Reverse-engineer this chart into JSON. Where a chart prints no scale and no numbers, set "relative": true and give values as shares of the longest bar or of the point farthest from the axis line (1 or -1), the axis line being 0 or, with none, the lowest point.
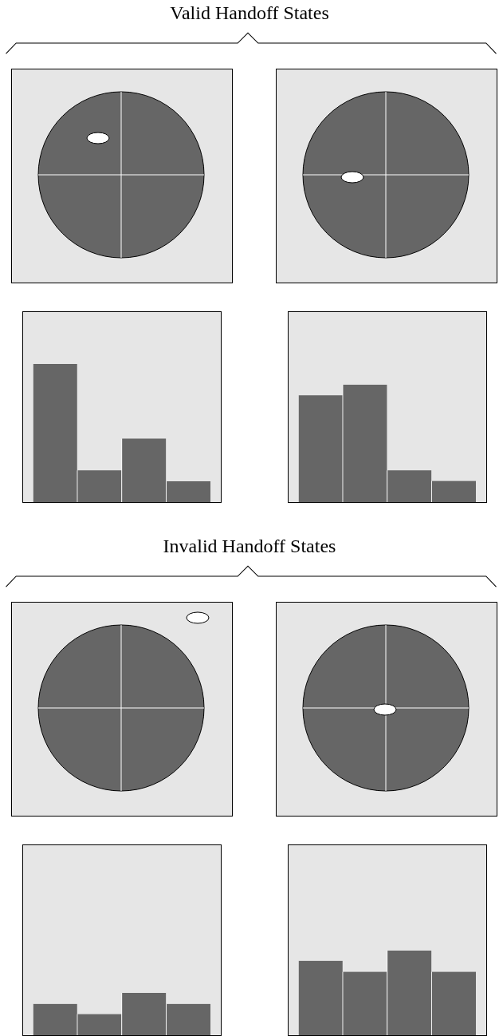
{
  "chart_data": [
    {
      "type": "bar",
      "title": "Valid Handoff States",
      "categories": [
        null,
        null,
        null,
        null
      ],
      "values": [
        1,
        0.23,
        0.46,
        0.15
      ],
      "color": "#666666",
      "relative": true,
      "grid": false,
      "tick_labels": false
    },
    {
      "type": "bar",
      "categories": [
        null,
        null,
        null,
        null
      ],
      "values": [
        0.91,
        1,
        0.27,
        0.18
      ],
      "color": "#666666",
      "relative": true,
      "grid": false,
      "tick_labels": false
    },
    {
      "type": "bar",
      "title": "Invalid Handoff States",
      "categories": [
        null,
        null,
        null,
        null
      ],
      "values": [
        0.74,
        0.5,
        1,
        0.74
      ],
      "color": "#666666",
      "relative": true,
      "grid": false,
      "tick_labels": false
    },
    {
      "type": "bar",
      "categories": [
        null,
        null,
        null,
        null
      ],
      "values": [
        0.88,
        0.75,
        1,
        0.75
      ],
      "color": "#666666",
      "relative": true,
      "grid": false,
      "tick_labels": false
    }
  ]
}
